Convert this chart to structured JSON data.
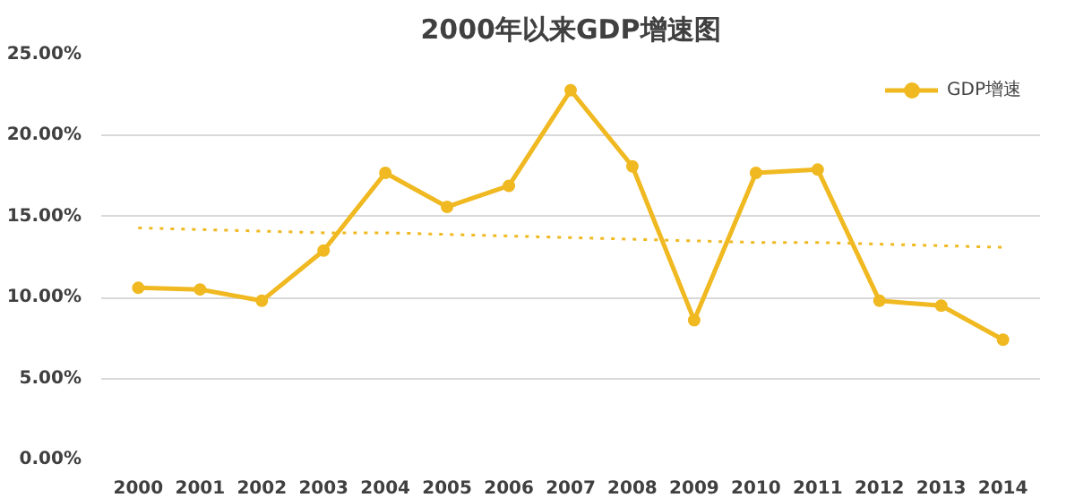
{
  "chart_data": {
    "type": "line",
    "title": "2000年以来GDP增速图",
    "categories": [
      "2000",
      "2001",
      "2002",
      "2003",
      "2004",
      "2005",
      "2006",
      "2007",
      "2008",
      "2009",
      "2010",
      "2011",
      "2012",
      "2013",
      "2014"
    ],
    "series": [
      {
        "name": "GDP增速",
        "color": "#f0b921",
        "marker": "circle",
        "line_style": "solid",
        "values": [
          10.6,
          10.5,
          9.8,
          12.9,
          17.7,
          15.6,
          16.9,
          22.8,
          18.1,
          8.6,
          17.7,
          17.9,
          9.8,
          9.5,
          7.4
        ]
      },
      {
        "type": "line",
        "color": "#f0b921",
        "marker": "none",
        "line_style": "dotted",
        "values": [
          14.3,
          14.2,
          14.1,
          14.0,
          14.0,
          13.9,
          13.8,
          13.7,
          13.6,
          13.5,
          13.4,
          13.4,
          13.3,
          13.2,
          13.1
        ]
      }
    ],
    "ylim": [
      0,
      25
    ],
    "yticks": [
      {
        "value": 0,
        "label": "0.00%"
      },
      {
        "value": 5,
        "label": "5.00%"
      },
      {
        "value": 10,
        "label": "10.00%"
      },
      {
        "value": 15,
        "label": "15.00%"
      },
      {
        "value": 20,
        "label": "20.00%"
      },
      {
        "value": 25,
        "label": "25.00%"
      }
    ],
    "grid": "y",
    "legend": "top right"
  }
}
